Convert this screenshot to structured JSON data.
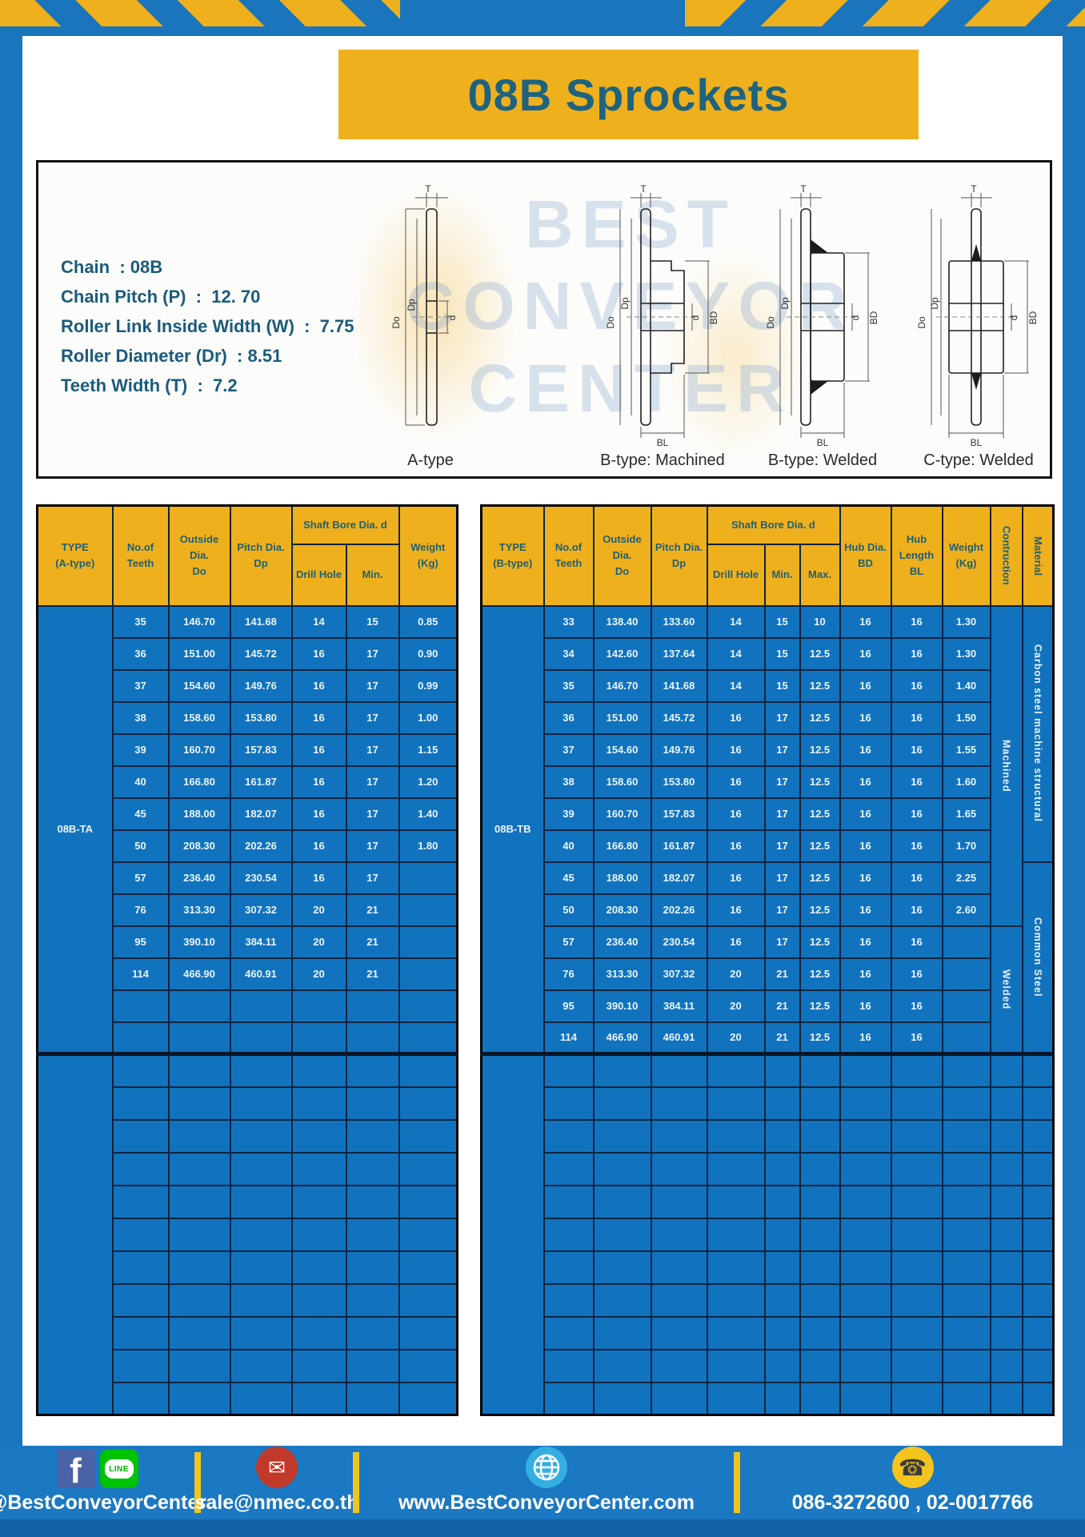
{
  "title": "08B Sprockets",
  "specs": [
    "Chain  : 08B",
    "Chain Pitch (P)  :  12. 70",
    "Roller Link Inside Width (W)  :  7.75",
    "Roller Diameter (Dr)  : 8.51",
    "Teeth Width (T)  :  7.2"
  ],
  "diagram": {
    "labels": {
      "T": "T",
      "Do": "Do",
      "Dp": "Dp",
      "d": "d",
      "BD": "BD",
      "BL": "BL"
    },
    "captions": [
      "A-type",
      "B-type: Machined",
      "B-type: Welded",
      "C-type: Welded"
    ],
    "watermark": [
      "BEST",
      "CONVEYOR",
      "CENTER"
    ]
  },
  "left_table": {
    "headers": {
      "type": "TYPE\n(A-type)",
      "teeth": "No.of\nTeeth",
      "outside": "Outside\nDia.\nDo",
      "pitch": "Pitch Dia.\nDp",
      "shaft_group": "Shaft Bore Dia. d",
      "drill": "Drill Hole",
      "min": "Min.",
      "weight": "Weight\n(Kg)"
    },
    "type_label": "08B-TA",
    "rows": [
      [
        "35",
        "146.70",
        "141.68",
        "14",
        "15",
        "0.85"
      ],
      [
        "36",
        "151.00",
        "145.72",
        "16",
        "17",
        "0.90"
      ],
      [
        "37",
        "154.60",
        "149.76",
        "16",
        "17",
        "0.99"
      ],
      [
        "38",
        "158.60",
        "153.80",
        "16",
        "17",
        "1.00"
      ],
      [
        "39",
        "160.70",
        "157.83",
        "16",
        "17",
        "1.15"
      ],
      [
        "40",
        "166.80",
        "161.87",
        "16",
        "17",
        "1.20"
      ],
      [
        "45",
        "188.00",
        "182.07",
        "16",
        "17",
        "1.40"
      ],
      [
        "50",
        "208.30",
        "202.26",
        "16",
        "17",
        "1.80"
      ],
      [
        "57",
        "236.40",
        "230.54",
        "16",
        "17",
        ""
      ],
      [
        "76",
        "313.30",
        "307.32",
        "20",
        "21",
        ""
      ],
      [
        "95",
        "390.10",
        "384.11",
        "20",
        "21",
        ""
      ],
      [
        "114",
        "466.90",
        "460.91",
        "20",
        "21",
        ""
      ]
    ],
    "extra_empty_rows_top_section": 2,
    "empty_section_rows": 11
  },
  "right_table": {
    "headers": {
      "type": "TYPE\n(B-type)",
      "teeth": "No.of\nTeeth",
      "outside": "Outside\nDia.\nDo",
      "pitch": "Pitch Dia.\nDp",
      "shaft_group": "Shaft Bore Dia. d",
      "drill": "Drill Hole",
      "min": "Min.",
      "max": "Max.",
      "hub_dia": "Hub Dia.\nBD",
      "hub_len": "Hub\nLength\nBL",
      "weight": "Weight\n(Kg)",
      "construction": "Contruction",
      "material": "Material"
    },
    "type_label": "08B-TB",
    "rows": [
      [
        "33",
        "138.40",
        "133.60",
        "14",
        "15",
        "10",
        "16",
        "16",
        "1.30"
      ],
      [
        "34",
        "142.60",
        "137.64",
        "14",
        "15",
        "12.5",
        "16",
        "16",
        "1.30"
      ],
      [
        "35",
        "146.70",
        "141.68",
        "14",
        "15",
        "12.5",
        "16",
        "16",
        "1.40"
      ],
      [
        "36",
        "151.00",
        "145.72",
        "16",
        "17",
        "12.5",
        "16",
        "16",
        "1.50"
      ],
      [
        "37",
        "154.60",
        "149.76",
        "16",
        "17",
        "12.5",
        "16",
        "16",
        "1.55"
      ],
      [
        "38",
        "158.60",
        "153.80",
        "16",
        "17",
        "12.5",
        "16",
        "16",
        "1.60"
      ],
      [
        "39",
        "160.70",
        "157.83",
        "16",
        "17",
        "12.5",
        "16",
        "16",
        "1.65"
      ],
      [
        "40",
        "166.80",
        "161.87",
        "16",
        "17",
        "12.5",
        "16",
        "16",
        "1.70"
      ],
      [
        "45",
        "188.00",
        "182.07",
        "16",
        "17",
        "12.5",
        "16",
        "16",
        "2.25"
      ],
      [
        "50",
        "208.30",
        "202.26",
        "16",
        "17",
        "12.5",
        "16",
        "16",
        "2.60"
      ],
      [
        "57",
        "236.40",
        "230.54",
        "16",
        "17",
        "12.5",
        "16",
        "16",
        ""
      ],
      [
        "76",
        "313.30",
        "307.32",
        "20",
        "21",
        "12.5",
        "16",
        "16",
        ""
      ],
      [
        "95",
        "390.10",
        "384.11",
        "20",
        "21",
        "12.5",
        "16",
        "16",
        ""
      ],
      [
        "114",
        "466.90",
        "460.91",
        "20",
        "21",
        "12.5",
        "16",
        "16",
        ""
      ]
    ],
    "construction_spans": [
      {
        "label": "Machined",
        "rows": 10
      },
      {
        "label": "Welded",
        "rows": 4
      }
    ],
    "material_spans": [
      {
        "label": "Carbon steel  machine structural",
        "rows": 8
      },
      {
        "label": "Common  Steel",
        "rows": 6
      }
    ],
    "empty_section_rows": 11
  },
  "footer": {
    "facebook_letter": "f",
    "line_label": "LINE",
    "social_handle": "@BestConveyorCenter",
    "email": "sale@nmec.co.th",
    "website": "www.BestConveyorCenter.com",
    "phones": "086-3272600 , 02-0017766",
    "mail_glyph": "✉",
    "phone_glyph": "☎"
  },
  "colors": {
    "frame_blue": "#1b75bc",
    "stripe_yellow": "#efb01d",
    "table_blue": "#1173bd",
    "header_yellow": "#efb01d",
    "header_text": "#1d6077",
    "title_text": "#1d6380",
    "footer_blue": "#1b78c2"
  }
}
